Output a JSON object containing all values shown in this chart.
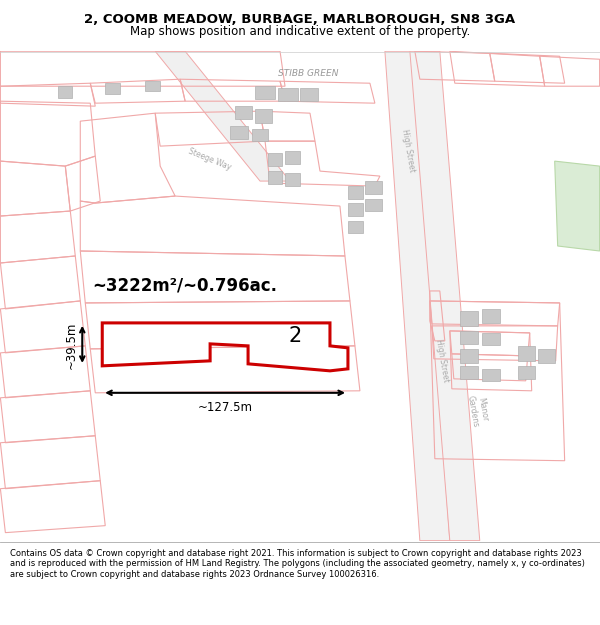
{
  "title_line1": "2, COOMB MEADOW, BURBAGE, MARLBOROUGH, SN8 3GA",
  "title_line2": "Map shows position and indicative extent of the property.",
  "footer_text": "Contains OS data © Crown copyright and database right 2021. This information is subject to Crown copyright and database rights 2023 and is reproduced with the permission of HM Land Registry. The polygons (including the associated geometry, namely x, y co-ordinates) are subject to Crown copyright and database rights 2023 Ordnance Survey 100026316.",
  "area_text": "~3222m²/~0.796ac.",
  "highlight_color": "#cc0000",
  "light_red": "#f0a8a8",
  "gray_fill": "#c8c8c8",
  "dim_width_text": "~127.5m",
  "dim_height_text": "~39.5m",
  "label_2": "2",
  "stibb_green": "STIBB GREEN",
  "high_street1": "High Street",
  "high_street2": "High Street",
  "manor_gardens": "Manor\nGardens",
  "steege_way": "Steege Way"
}
